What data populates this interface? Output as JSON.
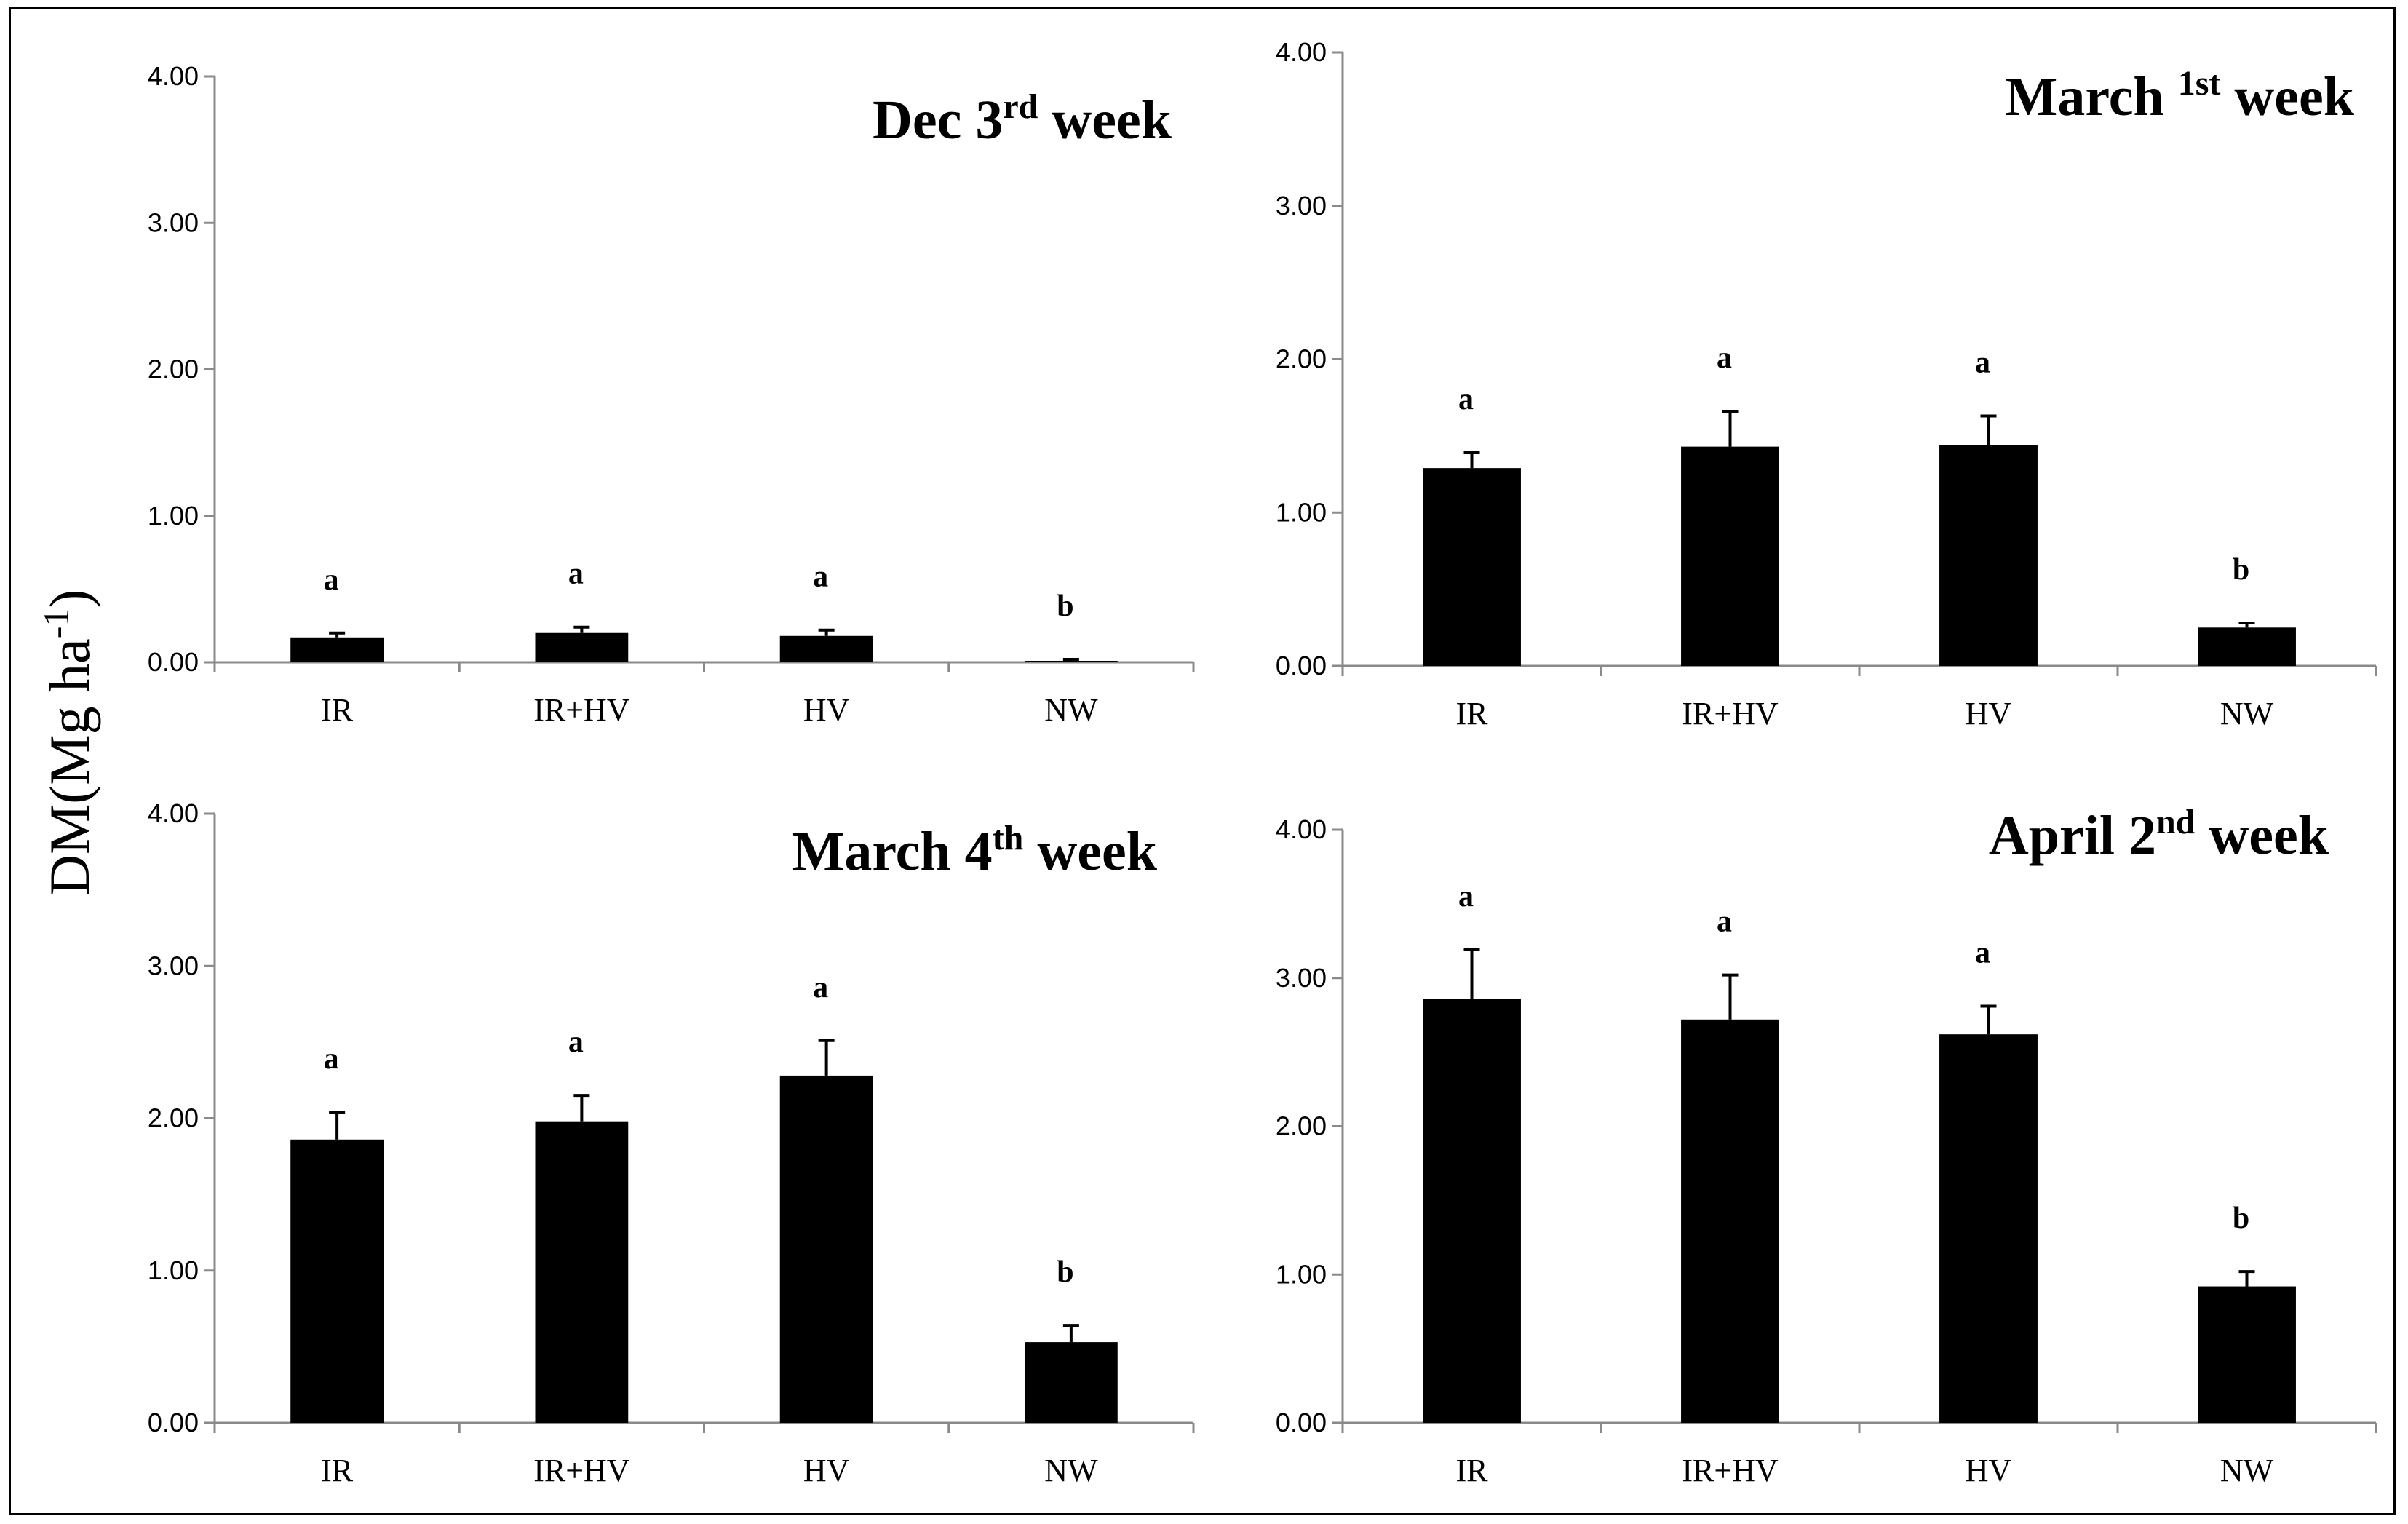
{
  "shared_ylabel": {
    "text": "DM(Mg ha",
    "superscript": "-1",
    "suffix": ")"
  },
  "chart_data": [
    {
      "type": "bar",
      "title": {
        "prefix": "Dec 3",
        "superscript": "rd",
        "suffix": " week"
      },
      "categories": [
        "IR",
        "IR+HV",
        "HV",
        "NW"
      ],
      "values": [
        0.17,
        0.2,
        0.18,
        0.01
      ],
      "errors": [
        0.03,
        0.04,
        0.04,
        0.01
      ],
      "significance": [
        "a",
        "a",
        "a",
        "b"
      ],
      "ylim": [
        0,
        4
      ],
      "yticks": [
        "0.00",
        "1.00",
        "2.00",
        "3.00",
        "4.00"
      ],
      "xlabel": "",
      "ylabel": "DM(Mg ha-1)"
    },
    {
      "type": "bar",
      "title": {
        "prefix": "March ",
        "superscript": "1st",
        "suffix": " week"
      },
      "categories": [
        "IR",
        "IR+HV",
        "HV",
        "NW"
      ],
      "values": [
        1.29,
        1.43,
        1.44,
        0.25
      ],
      "errors": [
        0.1,
        0.23,
        0.19,
        0.03
      ],
      "significance": [
        "a",
        "a",
        "a",
        "b"
      ],
      "ylim": [
        0,
        4
      ],
      "yticks": [
        "0.00",
        "1.00",
        "2.00",
        "3.00",
        "4.00"
      ],
      "xlabel": "",
      "ylabel": "DM(Mg ha-1)"
    },
    {
      "type": "bar",
      "title": {
        "prefix": "March 4",
        "superscript": "th",
        "suffix": " week"
      },
      "categories": [
        "IR",
        "IR+HV",
        "HV",
        "NW"
      ],
      "values": [
        1.86,
        1.98,
        2.28,
        0.53
      ],
      "errors": [
        0.18,
        0.17,
        0.23,
        0.11
      ],
      "significance": [
        "a",
        "a",
        "a",
        "b"
      ],
      "ylim": [
        0,
        4
      ],
      "yticks": [
        "0.00",
        "1.00",
        "2.00",
        "3.00",
        "4.00"
      ],
      "xlabel": "",
      "ylabel": "DM(Mg ha-1)"
    },
    {
      "type": "bar",
      "title": {
        "prefix": "April 2",
        "superscript": "nd",
        "suffix": " week"
      },
      "categories": [
        "IR",
        "IR+HV",
        "HV",
        "NW"
      ],
      "values": [
        2.86,
        2.72,
        2.62,
        0.92
      ],
      "errors": [
        0.33,
        0.3,
        0.19,
        0.1
      ],
      "significance": [
        "a",
        "a",
        "a",
        "b"
      ],
      "ylim": [
        0,
        4
      ],
      "yticks": [
        "0.00",
        "1.00",
        "2.00",
        "3.00",
        "4.00"
      ],
      "xlabel": "",
      "ylabel": "DM(Mg ha-1)"
    }
  ]
}
